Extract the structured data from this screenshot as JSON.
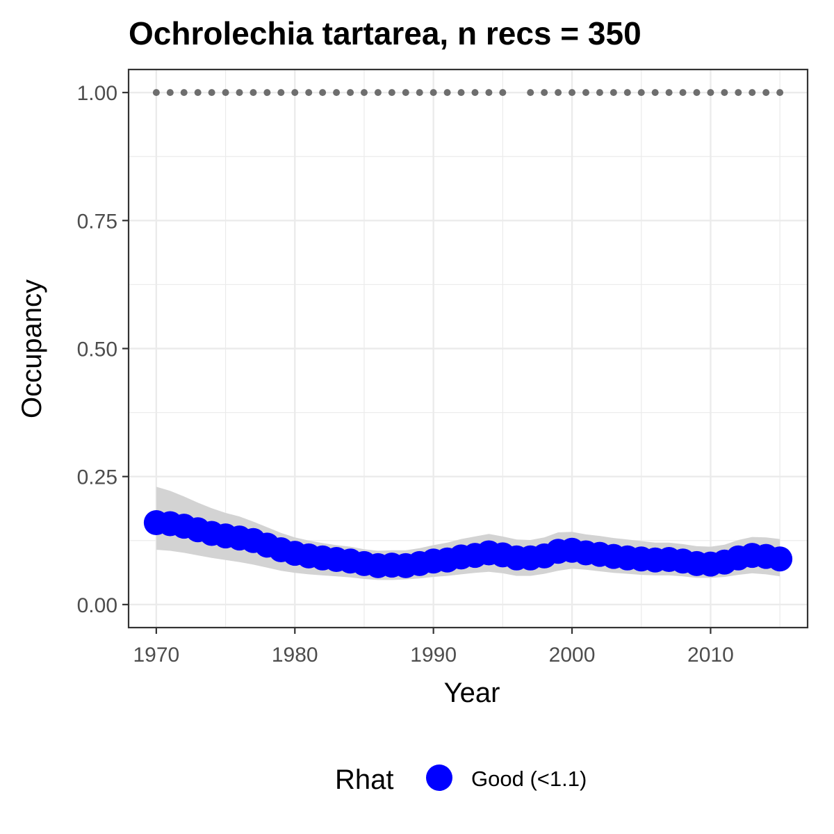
{
  "chart_data": {
    "type": "line",
    "title": "Ochrolechia tartarea, n recs = 350",
    "xlabel": "Year",
    "ylabel": "Occupancy",
    "xlim": [
      1968,
      2017
    ],
    "ylim": [
      -0.045,
      1.045
    ],
    "x_ticks": [
      "1970",
      "1980",
      "1990",
      "2000",
      "2010"
    ],
    "y_ticks": [
      "0.00",
      "0.25",
      "0.50",
      "0.75",
      "1.00"
    ],
    "grid": true,
    "legend": {
      "title": "Rhat",
      "position": "bottom",
      "entries": [
        {
          "label": "Good (<1.1)",
          "color": "#0000ff"
        }
      ]
    },
    "colors": {
      "points": "#0000ff",
      "ribbon": "#d3d3d3",
      "records": "#6e6e6e",
      "grid": "#ebebeb",
      "border": "#333333"
    },
    "series": [
      {
        "name": "Good (<1.1)",
        "x": [
          1970,
          1971,
          1972,
          1973,
          1974,
          1975,
          1976,
          1977,
          1978,
          1979,
          1980,
          1981,
          1982,
          1983,
          1984,
          1985,
          1986,
          1987,
          1988,
          1989,
          1990,
          1991,
          1992,
          1993,
          1994,
          1995,
          1996,
          1997,
          1998,
          1999,
          2000,
          2001,
          2002,
          2003,
          2004,
          2005,
          2006,
          2007,
          2008,
          2009,
          2010,
          2011,
          2012,
          2013,
          2014,
          2015
        ],
        "y": [
          0.16,
          0.158,
          0.153,
          0.146,
          0.139,
          0.134,
          0.13,
          0.125,
          0.116,
          0.107,
          0.1,
          0.095,
          0.091,
          0.088,
          0.085,
          0.08,
          0.076,
          0.077,
          0.076,
          0.08,
          0.085,
          0.087,
          0.093,
          0.096,
          0.101,
          0.097,
          0.091,
          0.091,
          0.095,
          0.104,
          0.106,
          0.101,
          0.098,
          0.094,
          0.091,
          0.089,
          0.087,
          0.088,
          0.085,
          0.08,
          0.079,
          0.083,
          0.091,
          0.096,
          0.094,
          0.089
        ],
        "lower": [
          0.107,
          0.105,
          0.101,
          0.096,
          0.091,
          0.087,
          0.083,
          0.078,
          0.072,
          0.066,
          0.062,
          0.059,
          0.057,
          0.055,
          0.053,
          0.05,
          0.048,
          0.048,
          0.049,
          0.051,
          0.054,
          0.056,
          0.059,
          0.062,
          0.064,
          0.061,
          0.056,
          0.056,
          0.06,
          0.066,
          0.07,
          0.068,
          0.065,
          0.062,
          0.06,
          0.058,
          0.057,
          0.057,
          0.055,
          0.052,
          0.052,
          0.054,
          0.058,
          0.061,
          0.059,
          0.055
        ],
        "upper": [
          0.23,
          0.222,
          0.211,
          0.199,
          0.188,
          0.179,
          0.172,
          0.162,
          0.151,
          0.14,
          0.131,
          0.125,
          0.12,
          0.116,
          0.113,
          0.108,
          0.105,
          0.106,
          0.106,
          0.11,
          0.116,
          0.121,
          0.128,
          0.133,
          0.138,
          0.133,
          0.127,
          0.126,
          0.131,
          0.141,
          0.142,
          0.137,
          0.134,
          0.13,
          0.127,
          0.124,
          0.121,
          0.121,
          0.118,
          0.114,
          0.113,
          0.117,
          0.126,
          0.132,
          0.131,
          0.128
        ]
      },
      {
        "name": "records",
        "x": [
          1970,
          1971,
          1972,
          1973,
          1974,
          1975,
          1976,
          1977,
          1978,
          1979,
          1980,
          1981,
          1982,
          1983,
          1984,
          1985,
          1986,
          1987,
          1988,
          1989,
          1990,
          1991,
          1992,
          1993,
          1994,
          1995,
          1997,
          1998,
          1999,
          2000,
          2001,
          2002,
          2003,
          2004,
          2005,
          2006,
          2007,
          2008,
          2009,
          2010,
          2011,
          2012,
          2013,
          2014,
          2015
        ],
        "y": [
          1,
          1,
          1,
          1,
          1,
          1,
          1,
          1,
          1,
          1,
          1,
          1,
          1,
          1,
          1,
          1,
          1,
          1,
          1,
          1,
          1,
          1,
          1,
          1,
          1,
          1,
          1,
          1,
          1,
          1,
          1,
          1,
          1,
          1,
          1,
          1,
          1,
          1,
          1,
          1,
          1,
          1,
          1,
          1,
          1
        ]
      }
    ]
  }
}
